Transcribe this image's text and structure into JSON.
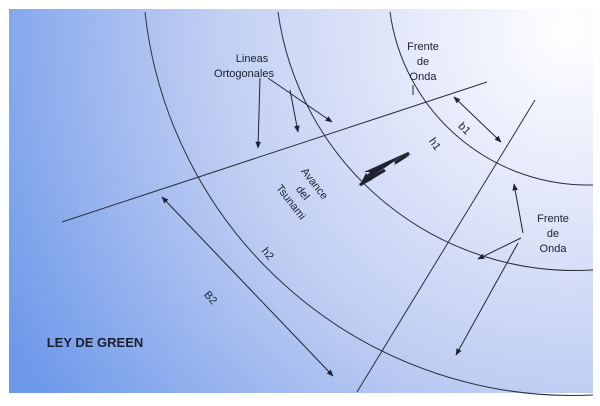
{
  "diagram": {
    "title": "LEY DE GREEN",
    "labels": {
      "ortho": [
        "Lineas",
        "Ortogonales"
      ],
      "front_top": [
        "Frente",
        "de",
        "Onda"
      ],
      "front_right": [
        "Frente",
        "de",
        "Onda"
      ],
      "advance": [
        "Avance",
        "del",
        "Tsunami"
      ],
      "b1": "b1",
      "h1": "h1",
      "h2": "h2",
      "b2": "B2"
    },
    "colors": {
      "center": "#ffffff",
      "mid": "#cfd8f5",
      "edge": "#6e99ea",
      "lines": "#2a2f3d"
    }
  }
}
